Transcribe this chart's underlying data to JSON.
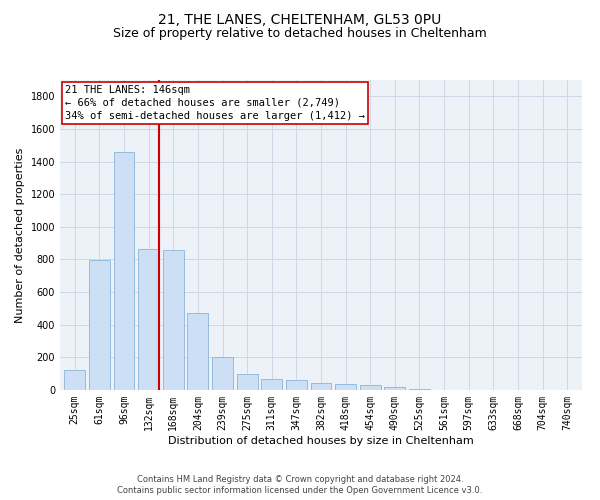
{
  "title1": "21, THE LANES, CHELTENHAM, GL53 0PU",
  "title2": "Size of property relative to detached houses in Cheltenham",
  "xlabel": "Distribution of detached houses by size in Cheltenham",
  "ylabel": "Number of detached properties",
  "footer1": "Contains HM Land Registry data © Crown copyright and database right 2024.",
  "footer2": "Contains public sector information licensed under the Open Government Licence v3.0.",
  "categories": [
    "25sqm",
    "61sqm",
    "96sqm",
    "132sqm",
    "168sqm",
    "204sqm",
    "239sqm",
    "275sqm",
    "311sqm",
    "347sqm",
    "382sqm",
    "418sqm",
    "454sqm",
    "490sqm",
    "525sqm",
    "561sqm",
    "597sqm",
    "633sqm",
    "668sqm",
    "704sqm",
    "740sqm"
  ],
  "values": [
    120,
    795,
    1460,
    865,
    860,
    470,
    200,
    100,
    65,
    60,
    45,
    35,
    30,
    20,
    5,
    0,
    0,
    0,
    0,
    0,
    0
  ],
  "bar_color": "#ccdff5",
  "bar_edge_color": "#8ab4d9",
  "vline_color": "#cc0000",
  "vline_pos": 3.43,
  "annotation_text": "21 THE LANES: 146sqm\n← 66% of detached houses are smaller (2,749)\n34% of semi-detached houses are larger (1,412) →",
  "ylim": [
    0,
    1900
  ],
  "yticks": [
    0,
    200,
    400,
    600,
    800,
    1000,
    1200,
    1400,
    1600,
    1800
  ],
  "grid_color": "#d0d8e8",
  "bg_color": "#edf1f8",
  "title1_fontsize": 10,
  "title2_fontsize": 9,
  "xlabel_fontsize": 8,
  "ylabel_fontsize": 8,
  "tick_fontsize": 7,
  "annotation_fontsize": 7.5,
  "footer_fontsize": 6
}
